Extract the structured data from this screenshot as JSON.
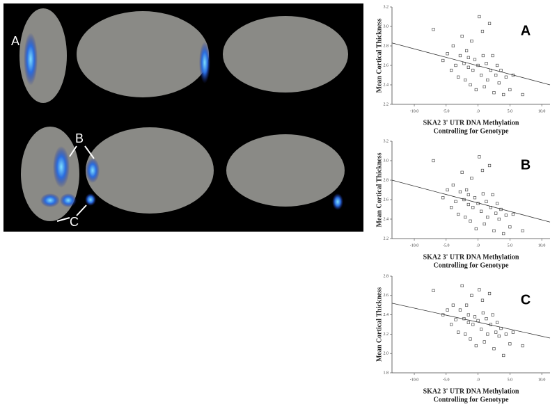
{
  "figure": {
    "brain_labels": [
      "A",
      "B",
      "C"
    ]
  },
  "chart_data": [
    {
      "type": "scatter",
      "panel_label": "A",
      "ylabel": "Mean Cortical Thickness",
      "xlabel": [
        "SKA2 3' UTR DNA Methylation",
        "Controlling for Genotype"
      ],
      "xlim": [
        -13.5,
        11.3
      ],
      "ylim": [
        2.2,
        3.2
      ],
      "xticks": [
        {
          "value": -10,
          "label": "-10.0"
        },
        {
          "value": -5,
          "label": "-5.0"
        },
        {
          "value": 0,
          "label": ".0"
        },
        {
          "value": 5,
          "label": "5.0"
        },
        {
          "value": 10,
          "label": "10.0"
        }
      ],
      "yticks": [
        2.2,
        2.4,
        2.6,
        2.8,
        {
          "value": 3,
          "label": "3.0"
        },
        3.2
      ],
      "x": [
        -7,
        -5.5,
        -4.8,
        -4.2,
        -3.9,
        -3.5,
        -3.1,
        -2.8,
        -2.5,
        -2.2,
        -2,
        -1.8,
        -1.5,
        -1.2,
        -1,
        -0.8,
        -0.5,
        -0.3,
        0,
        0.2,
        0.5,
        0.8,
        1,
        1.3,
        1.5,
        1.8,
        2,
        2.3,
        2.5,
        2.8,
        3,
        3.3,
        3.6,
        4,
        4.4,
        5,
        5.5,
        7,
        -1.5,
        0.7
      ],
      "y": [
        2.97,
        2.65,
        2.72,
        2.55,
        2.8,
        2.6,
        2.48,
        2.7,
        2.9,
        2.62,
        2.45,
        2.75,
        2.58,
        2.4,
        2.85,
        2.55,
        2.66,
        2.35,
        2.6,
        3.1,
        2.5,
        2.7,
        2.38,
        2.62,
        2.45,
        3.03,
        2.55,
        2.7,
        2.32,
        2.5,
        2.6,
        2.42,
        2.55,
        2.3,
        2.48,
        2.35,
        2.5,
        2.3,
        2.68,
        2.95
      ],
      "trend": {
        "x": [
          -13.5,
          11.3
        ],
        "y": [
          2.83,
          2.4
        ]
      }
    },
    {
      "type": "scatter",
      "panel_label": "B",
      "ylabel": "Mean Cortical Thickness",
      "xlabel": [
        "SKA2 3' UTR DNA Methylation",
        "Controlling for Genotype"
      ],
      "xlim": [
        -13.5,
        11.3
      ],
      "ylim": [
        2.2,
        3.2
      ],
      "xticks": [
        {
          "value": -10,
          "label": "-10.0"
        },
        {
          "value": -5,
          "label": "-5.0"
        },
        {
          "value": 0,
          "label": ".0"
        },
        {
          "value": 5,
          "label": "5.0"
        },
        {
          "value": 10,
          "label": "10.0"
        }
      ],
      "yticks": [
        2.2,
        2.4,
        2.6,
        2.8,
        {
          "value": 3,
          "label": "3.0"
        },
        3.2
      ],
      "x": [
        -7,
        -5.5,
        -4.8,
        -4.2,
        -3.9,
        -3.5,
        -3.1,
        -2.8,
        -2.5,
        -2.2,
        -2,
        -1.8,
        -1.5,
        -1.2,
        -1,
        -0.8,
        -0.5,
        -0.3,
        0,
        0.2,
        0.5,
        0.8,
        1,
        1.3,
        1.5,
        1.8,
        2,
        2.3,
        2.5,
        2.8,
        3,
        3.3,
        3.6,
        4,
        4.4,
        5,
        5.5,
        7,
        -1.5,
        0.7
      ],
      "y": [
        3.0,
        2.62,
        2.7,
        2.52,
        2.75,
        2.58,
        2.45,
        2.68,
        2.88,
        2.6,
        2.42,
        2.7,
        2.55,
        2.38,
        2.82,
        2.52,
        2.62,
        2.3,
        2.56,
        3.04,
        2.48,
        2.66,
        2.35,
        2.58,
        2.42,
        2.95,
        2.52,
        2.65,
        2.28,
        2.46,
        2.56,
        2.4,
        2.5,
        2.25,
        2.44,
        2.32,
        2.45,
        2.28,
        2.65,
        2.9
      ],
      "trend": {
        "x": [
          -13.5,
          11.3
        ],
        "y": [
          2.8,
          2.37
        ]
      }
    },
    {
      "type": "scatter",
      "panel_label": "C",
      "ylabel": "Mean Cortical Thickness",
      "xlabel": [
        "SKA2 3' UTR DNA Methylation",
        "Controlling for Genotype"
      ],
      "xlim": [
        -13.5,
        11.3
      ],
      "ylim": [
        1.8,
        2.8
      ],
      "xticks": [
        {
          "value": -10,
          "label": "-10.0"
        },
        {
          "value": -5,
          "label": "-5.0"
        },
        {
          "value": 0,
          "label": ".0"
        },
        {
          "value": 5,
          "label": "5.0"
        },
        {
          "value": 10,
          "label": "10.0"
        }
      ],
      "yticks": [
        1.8,
        {
          "value": 2,
          "label": "2.0"
        },
        2.2,
        2.4,
        2.6,
        2.8
      ],
      "x": [
        -7,
        -5.5,
        -4.8,
        -4.2,
        -3.9,
        -3.5,
        -3.1,
        -2.8,
        -2.5,
        -2.2,
        -2,
        -1.8,
        -1.5,
        -1.2,
        -1,
        -0.8,
        -0.5,
        -0.3,
        0,
        0.2,
        0.5,
        0.8,
        1,
        1.3,
        1.5,
        1.8,
        2,
        2.3,
        2.5,
        2.8,
        3,
        3.3,
        3.6,
        4,
        4.4,
        5,
        5.5,
        7,
        -1.5,
        0.7
      ],
      "y": [
        2.65,
        2.4,
        2.45,
        2.3,
        2.5,
        2.35,
        2.22,
        2.45,
        2.7,
        2.36,
        2.2,
        2.5,
        2.32,
        2.15,
        2.6,
        2.3,
        2.38,
        2.08,
        2.34,
        2.66,
        2.25,
        2.42,
        2.12,
        2.36,
        2.2,
        2.62,
        2.3,
        2.4,
        2.05,
        2.22,
        2.32,
        2.18,
        2.26,
        1.98,
        2.2,
        2.1,
        2.22,
        2.08,
        2.4,
        2.55
      ],
      "trend": {
        "x": [
          -13.5,
          11.3
        ],
        "y": [
          2.52,
          2.16
        ]
      }
    }
  ]
}
